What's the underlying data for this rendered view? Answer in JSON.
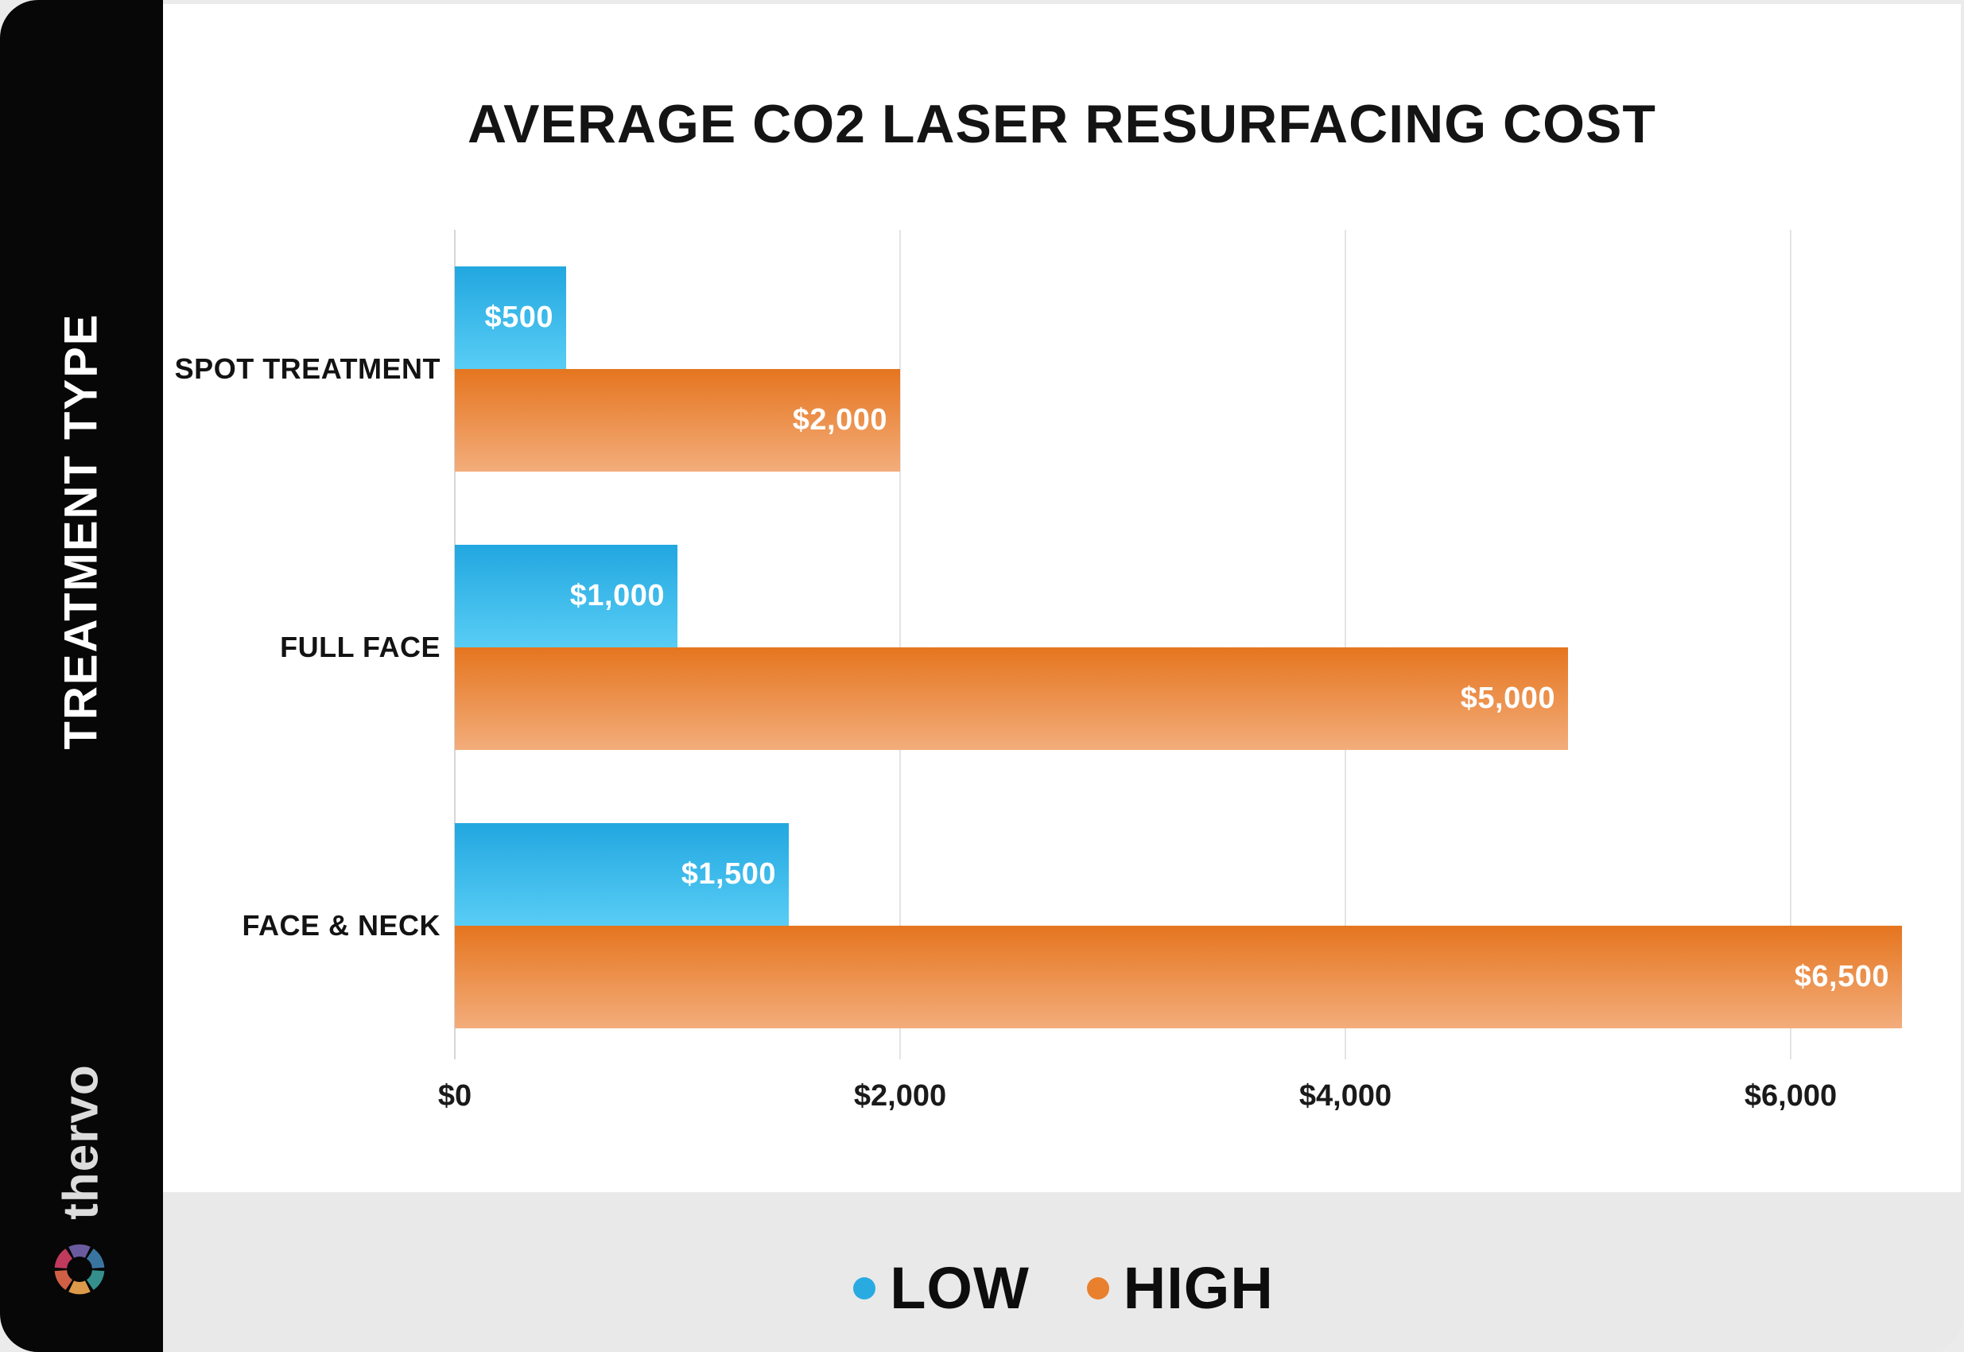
{
  "page": {
    "background": "#ebebeb",
    "card_background": "#ffffff",
    "strip_background": "#e9e9e9"
  },
  "sidebar": {
    "axis_label": "TREATMENT TYPE",
    "logo_text": "thervo",
    "logo_icon": "aperture-icon",
    "logo_icon_colors": [
      "#6a5a9e",
      "#3a75a0",
      "#35908b",
      "#dd9a4a",
      "#cf6046",
      "#c03a5e"
    ],
    "background": "#070707"
  },
  "chart_data": {
    "type": "bar",
    "orientation": "horizontal",
    "title": "AVERAGE CO2 LASER RESURFACING COST",
    "categories": [
      "SPOT TREATMENT",
      "FULL FACE",
      "FACE & NECK"
    ],
    "series": [
      {
        "name": "LOW",
        "values": [
          500,
          1000,
          1500
        ],
        "labels": [
          "$500",
          "$1,000",
          "$1,500"
        ],
        "gradient_top": "#22a7e0",
        "gradient_bottom": "#58cdf5"
      },
      {
        "name": "HIGH",
        "values": [
          2000,
          5000,
          6500
        ],
        "labels": [
          "$2,000",
          "$5,000",
          "$6,500"
        ],
        "gradient_top": "#e5751f",
        "gradient_bottom": "#f3ad7b"
      }
    ],
    "x_axis": {
      "max": 6600,
      "ticks": [
        0,
        2000,
        4000,
        6000
      ],
      "tick_labels": [
        "$0",
        "$2,000",
        "$4,000",
        "$6,000"
      ]
    },
    "ylabel": "TREATMENT TYPE",
    "xlabel": "",
    "grid": true,
    "legend_position": "bottom",
    "legend": [
      {
        "label": "LOW",
        "color": "#29abe2"
      },
      {
        "label": "HIGH",
        "color": "#e8802e"
      }
    ]
  }
}
